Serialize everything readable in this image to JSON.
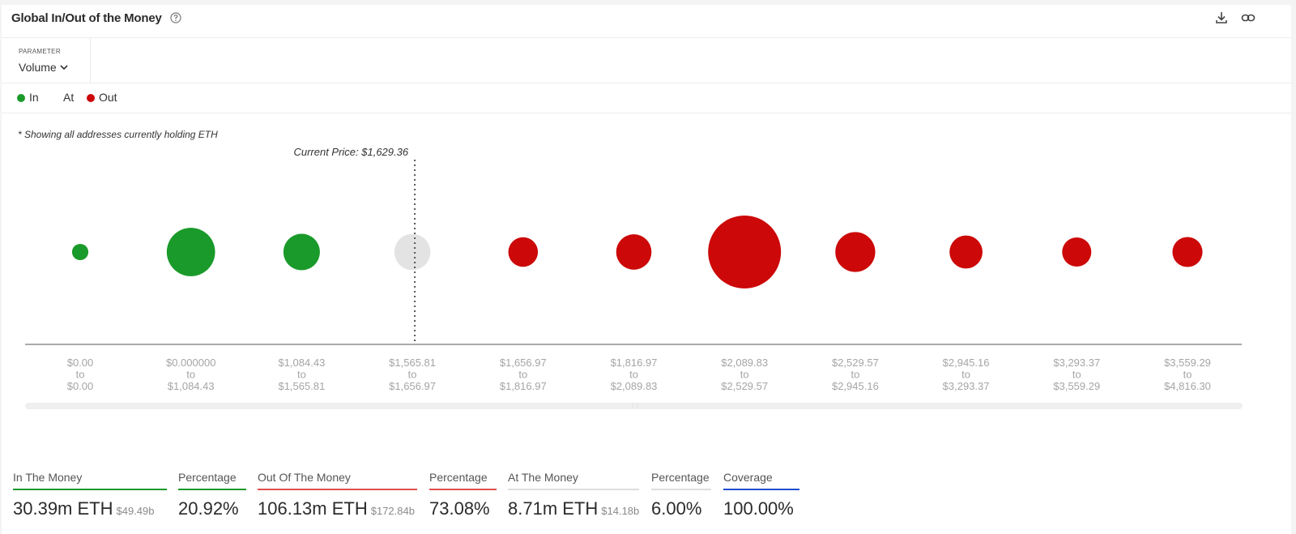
{
  "header": {
    "title": "Global In/Out of the Money"
  },
  "parameter": {
    "caption": "PARAMETER",
    "value": "Volume"
  },
  "legend": [
    {
      "label": "In",
      "color": "#1a9a2a"
    },
    {
      "label": "At",
      "color": null
    },
    {
      "label": "Out",
      "color": "#cc0808"
    }
  ],
  "note": "* Showing all addresses currently holding ETH",
  "chart_data": {
    "type": "bubble",
    "current_price_label": "Current Price: $1,629.36",
    "current_price_bucket_index": 3,
    "buckets": [
      {
        "from": "$0.00",
        "to": "$0.00",
        "status": "in",
        "relative_volume": 0.1
      },
      {
        "from": "$0.000000",
        "to": "$1,084.43",
        "status": "in",
        "relative_volume": 0.88
      },
      {
        "from": "$1,084.43",
        "to": "$1,565.81",
        "status": "in",
        "relative_volume": 0.5
      },
      {
        "from": "$1,565.81",
        "to": "$1,656.97",
        "status": "at",
        "relative_volume": 0.49
      },
      {
        "from": "$1,656.97",
        "to": "$1,816.97",
        "status": "out",
        "relative_volume": 0.33
      },
      {
        "from": "$1,816.97",
        "to": "$2,089.83",
        "status": "out",
        "relative_volume": 0.47
      },
      {
        "from": "$2,089.83",
        "to": "$2,529.57",
        "status": "out",
        "relative_volume": 2.0
      },
      {
        "from": "$2,529.57",
        "to": "$2,945.16",
        "status": "out",
        "relative_volume": 0.6
      },
      {
        "from": "$2,945.16",
        "to": "$3,293.37",
        "status": "out",
        "relative_volume": 0.41
      },
      {
        "from": "$3,293.37",
        "to": "$3,559.29",
        "status": "out",
        "relative_volume": 0.32
      },
      {
        "from": "$3,559.29",
        "to": "$4,816.30",
        "status": "out",
        "relative_volume": 0.34
      }
    ],
    "range_connector": "to",
    "colors": {
      "in": "#1a9a2a",
      "at": "#e3e3e3",
      "out": "#cc0808"
    }
  },
  "summary": [
    {
      "label": "In The Money",
      "value": "30.39m ETH",
      "sub": "$49.49b",
      "underline": "#1a9a2a"
    },
    {
      "label": "Percentage",
      "value": "20.92%",
      "sub": "",
      "underline": "#1a9a2a"
    },
    {
      "label": "Out Of The Money",
      "value": "106.13m ETH",
      "sub": "$172.84b",
      "underline": "#e05050"
    },
    {
      "label": "Percentage",
      "value": "73.08%",
      "sub": "",
      "underline": "#e05050"
    },
    {
      "label": "At The Money",
      "value": "8.71m ETH",
      "sub": "$14.18b",
      "underline": "#dddddd"
    },
    {
      "label": "Percentage",
      "value": "6.00%",
      "sub": "",
      "underline": "#dddddd"
    },
    {
      "label": "Coverage",
      "value": "100.00%",
      "sub": "",
      "underline": "#1f4fd1"
    }
  ]
}
